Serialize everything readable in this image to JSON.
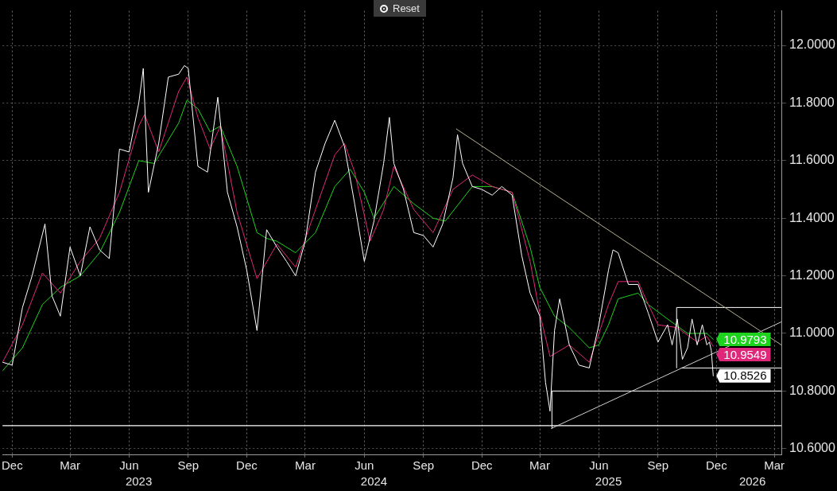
{
  "chart_data": {
    "type": "line",
    "annotations": [
      "Reset"
    ],
    "xlim": [
      "2022-12-01",
      "2026-03-27"
    ],
    "xticks": [
      {
        "value": "2022-12-16",
        "label": "Dec"
      },
      {
        "value": "2023-03-16",
        "label": "Mar"
      },
      {
        "value": "2023-06-16",
        "label": "Jun"
      },
      {
        "value": "2023-09-16",
        "label": "Sep"
      },
      {
        "value": "2023-12-16",
        "label": "Dec"
      },
      {
        "value": "2024-03-16",
        "label": "Mar"
      },
      {
        "value": "2024-06-16",
        "label": "Jun"
      },
      {
        "value": "2024-09-16",
        "label": "Sep"
      },
      {
        "value": "2024-12-16",
        "label": "Dec"
      },
      {
        "value": "2025-03-16",
        "label": "Mar"
      },
      {
        "value": "2025-06-16",
        "label": "Jun"
      },
      {
        "value": "2025-09-16",
        "label": "Sep"
      },
      {
        "value": "2025-12-16",
        "label": "Dec"
      },
      {
        "value": "2026-03-16",
        "label": "Mar"
      }
    ],
    "x2lim": [
      "2022-12-01",
      "2026-03-27"
    ],
    "x2ticks": [
      {
        "value": "2023-07-01",
        "label": "2023"
      },
      {
        "value": "2024-07-01",
        "label": "2024"
      },
      {
        "value": "2025-07-01",
        "label": "2025"
      },
      {
        "value": "2026-02-10",
        "label": "2026"
      }
    ],
    "ylim": [
      10.58,
      12.12
    ],
    "yticks": [
      {
        "value": 10.6,
        "label": "10.6000"
      },
      {
        "value": 10.8,
        "label": "10.8000"
      },
      {
        "value": 11.0,
        "label": "11.0000"
      },
      {
        "value": 11.2,
        "label": "11.2000"
      },
      {
        "value": 11.4,
        "label": "11.4000"
      },
      {
        "value": 11.6,
        "label": "11.6000"
      },
      {
        "value": 11.8,
        "label": "11.8000"
      },
      {
        "value": 12.0,
        "label": "12.0000"
      }
    ],
    "grid": true,
    "legend": false,
    "marker": "none",
    "ref_lines": [
      {
        "axis": "y",
        "value": 10.68,
        "color": "#ffffff"
      }
    ],
    "series": [
      {
        "color": "#ffffff",
        "x": [
          "2022-12-01",
          "2022-12-16",
          "2023-01-01",
          "2023-01-16",
          "2023-02-05",
          "2023-02-16",
          "2023-03-01",
          "2023-03-16",
          "2023-04-01",
          "2023-04-16",
          "2023-05-01",
          "2023-05-16",
          "2023-06-01",
          "2023-06-16",
          "2023-07-01",
          "2023-07-08",
          "2023-07-16",
          "2023-08-01",
          "2023-08-16",
          "2023-09-01",
          "2023-09-10",
          "2023-09-16",
          "2023-10-01",
          "2023-10-16",
          "2023-11-01",
          "2023-11-16",
          "2023-12-01",
          "2023-12-16",
          "2024-01-01",
          "2024-01-16",
          "2024-02-01",
          "2024-02-16",
          "2024-03-01",
          "2024-03-16",
          "2024-04-01",
          "2024-04-16",
          "2024-05-01",
          "2024-05-16",
          "2024-06-01",
          "2024-06-16",
          "2024-07-01",
          "2024-07-16",
          "2024-07-25",
          "2024-08-01",
          "2024-08-16",
          "2024-09-01",
          "2024-09-16",
          "2024-10-01",
          "2024-10-16",
          "2024-11-01",
          "2024-11-08",
          "2024-11-16",
          "2024-12-01",
          "2024-12-16",
          "2025-01-01",
          "2025-01-16",
          "2025-02-01",
          "2025-02-16",
          "2025-03-01",
          "2025-03-16",
          "2025-03-25",
          "2025-04-01",
          "2025-04-08",
          "2025-04-16",
          "2025-05-01",
          "2025-05-16",
          "2025-06-01",
          "2025-06-16",
          "2025-07-01",
          "2025-07-08",
          "2025-07-16",
          "2025-08-01",
          "2025-08-16",
          "2025-09-01",
          "2025-09-16",
          "2025-10-01",
          "2025-10-08",
          "2025-10-16",
          "2025-10-24",
          "2025-11-01",
          "2025-11-08",
          "2025-11-16",
          "2025-11-24",
          "2025-12-01",
          "2025-12-05",
          "2025-12-08",
          "2025-12-11"
        ],
        "values": [
          10.9,
          10.89,
          11.09,
          11.2,
          11.38,
          11.13,
          11.06,
          11.3,
          11.2,
          11.37,
          11.29,
          11.26,
          11.64,
          11.63,
          11.8,
          11.92,
          11.49,
          11.66,
          11.89,
          11.9,
          11.93,
          11.92,
          11.58,
          11.56,
          11.82,
          11.49,
          11.37,
          11.22,
          11.01,
          11.36,
          11.3,
          11.25,
          11.2,
          11.32,
          11.56,
          11.66,
          11.74,
          11.65,
          11.45,
          11.25,
          11.39,
          11.59,
          11.75,
          11.59,
          11.5,
          11.35,
          11.34,
          11.3,
          11.38,
          11.54,
          11.69,
          11.59,
          11.51,
          11.5,
          11.48,
          11.51,
          11.48,
          11.27,
          11.14,
          11.06,
          10.83,
          10.73,
          11.01,
          11.12,
          10.96,
          10.89,
          10.88,
          11.03,
          11.22,
          11.29,
          11.28,
          11.17,
          11.17,
          11.07,
          10.97,
          11.03,
          10.96,
          11.05,
          10.91,
          10.95,
          11.05,
          10.96,
          11.03,
          10.96,
          10.97,
          10.94,
          10.8526
        ],
        "value_labels": [
          null,
          null,
          null,
          null,
          null,
          null,
          null,
          null,
          null,
          null,
          null,
          null,
          null,
          null,
          null,
          null,
          null,
          null,
          null,
          null,
          null,
          null,
          null,
          null,
          null,
          null,
          null,
          null,
          null,
          null,
          null,
          null,
          null,
          null,
          null,
          null,
          null,
          null,
          null,
          null,
          null,
          null,
          null,
          null,
          null,
          null,
          null,
          null,
          null,
          null,
          null,
          null,
          null,
          null,
          null,
          null,
          null,
          null,
          null,
          null,
          null,
          null,
          null,
          null,
          null,
          null,
          null,
          null,
          null,
          null,
          null,
          null,
          null,
          null,
          null,
          null,
          null,
          null,
          null,
          null,
          null,
          null,
          null,
          null,
          null,
          null,
          "10.8526"
        ]
      },
      {
        "color": "#e0287a",
        "x": [
          "2022-12-01",
          "2023-01-01",
          "2023-02-01",
          "2023-03-01",
          "2023-04-01",
          "2023-05-01",
          "2023-06-01",
          "2023-07-01",
          "2023-07-10",
          "2023-08-01",
          "2023-09-01",
          "2023-09-14",
          "2023-10-01",
          "2023-10-20",
          "2023-11-05",
          "2023-12-01",
          "2024-01-01",
          "2024-02-01",
          "2024-03-01",
          "2024-04-01",
          "2024-05-01",
          "2024-05-16",
          "2024-06-01",
          "2024-06-25",
          "2024-07-16",
          "2024-08-01",
          "2024-09-01",
          "2024-10-01",
          "2024-11-01",
          "2024-12-01",
          "2025-01-01",
          "2025-02-01",
          "2025-03-01",
          "2025-03-16",
          "2025-04-01",
          "2025-05-01",
          "2025-06-01",
          "2025-07-01",
          "2025-07-16",
          "2025-08-16",
          "2025-09-01",
          "2025-09-16",
          "2025-10-16",
          "2025-11-16",
          "2025-12-01",
          "2025-12-11"
        ],
        "values": [
          10.9,
          11.03,
          11.21,
          11.14,
          11.25,
          11.33,
          11.49,
          11.72,
          11.76,
          11.63,
          11.84,
          11.89,
          11.75,
          11.64,
          11.72,
          11.42,
          11.19,
          11.31,
          11.23,
          11.43,
          11.62,
          11.66,
          11.56,
          11.32,
          11.43,
          11.58,
          11.43,
          11.35,
          11.5,
          11.55,
          11.51,
          11.49,
          11.25,
          11.07,
          10.92,
          10.96,
          10.9,
          11.1,
          11.18,
          11.18,
          11.1,
          11.03,
          11.02,
          10.97,
          10.99,
          10.9549
        ],
        "value_labels": [
          null,
          null,
          null,
          null,
          null,
          null,
          null,
          null,
          null,
          null,
          null,
          null,
          null,
          null,
          null,
          null,
          null,
          null,
          null,
          null,
          null,
          null,
          null,
          null,
          null,
          null,
          null,
          null,
          null,
          null,
          null,
          null,
          null,
          null,
          null,
          null,
          null,
          null,
          null,
          null,
          null,
          null,
          null,
          null,
          null,
          "10.9549"
        ]
      },
      {
        "color": "#1ed31e",
        "x": [
          "2022-12-01",
          "2023-01-01",
          "2023-02-01",
          "2023-03-01",
          "2023-04-01",
          "2023-05-01",
          "2023-06-01",
          "2023-07-01",
          "2023-07-25",
          "2023-09-01",
          "2023-09-14",
          "2023-10-01",
          "2023-10-20",
          "2023-11-05",
          "2023-12-01",
          "2024-01-01",
          "2024-01-16",
          "2024-02-01",
          "2024-03-01",
          "2024-04-01",
          "2024-05-01",
          "2024-05-25",
          "2024-06-16",
          "2024-07-01",
          "2024-08-01",
          "2024-09-01",
          "2024-10-01",
          "2024-10-20",
          "2024-12-01",
          "2025-01-01",
          "2025-02-01",
          "2025-03-01",
          "2025-03-16",
          "2025-04-08",
          "2025-05-01",
          "2025-06-01",
          "2025-06-16",
          "2025-07-01",
          "2025-07-16",
          "2025-08-16",
          "2025-09-01",
          "2025-10-01",
          "2025-11-01",
          "2025-12-01",
          "2025-12-11"
        ],
        "values": [
          10.87,
          10.95,
          11.1,
          11.16,
          11.2,
          11.28,
          11.42,
          11.6,
          11.59,
          11.73,
          11.81,
          11.78,
          11.7,
          11.72,
          11.58,
          11.35,
          11.33,
          11.32,
          11.28,
          11.35,
          11.51,
          11.57,
          11.49,
          11.4,
          11.51,
          11.45,
          11.4,
          11.39,
          11.51,
          11.51,
          11.49,
          11.3,
          11.16,
          11.06,
          11.02,
          10.95,
          10.96,
          11.03,
          11.12,
          11.14,
          11.1,
          11.05,
          11.0,
          11.0,
          10.9793
        ],
        "value_labels": [
          null,
          null,
          null,
          null,
          null,
          null,
          null,
          null,
          null,
          null,
          null,
          null,
          null,
          null,
          null,
          null,
          null,
          null,
          null,
          null,
          null,
          null,
          null,
          null,
          null,
          null,
          null,
          null,
          null,
          null,
          null,
          null,
          null,
          null,
          null,
          null,
          null,
          null,
          null,
          null,
          null,
          null,
          null,
          null,
          "10.9793"
        ]
      },
      {
        "type": "line",
        "color": "#b8b08e",
        "x": [
          "2024-11-06",
          "2026-03-27"
        ],
        "values": [
          11.71,
          10.96
        ]
      },
      {
        "type": "line",
        "color": "#d0d0d0",
        "x": [
          "2025-04-03",
          "2026-03-27"
        ],
        "values": [
          10.67,
          11.04
        ]
      },
      {
        "type": "line",
        "color": "#ffffff",
        "x": [
          "2025-10-15",
          "2025-10-15",
          "2026-03-27"
        ],
        "values": [
          10.88,
          11.09,
          11.09
        ]
      },
      {
        "type": "line",
        "color": "#ffffff",
        "x": [
          "2025-10-22",
          "2026-03-27"
        ],
        "values": [
          10.88,
          10.88
        ]
      },
      {
        "type": "line",
        "color": "#ffffff",
        "x": [
          "2025-04-04",
          "2025-04-04",
          "2026-03-27"
        ],
        "values": [
          10.67,
          10.8,
          10.8
        ]
      }
    ]
  }
}
